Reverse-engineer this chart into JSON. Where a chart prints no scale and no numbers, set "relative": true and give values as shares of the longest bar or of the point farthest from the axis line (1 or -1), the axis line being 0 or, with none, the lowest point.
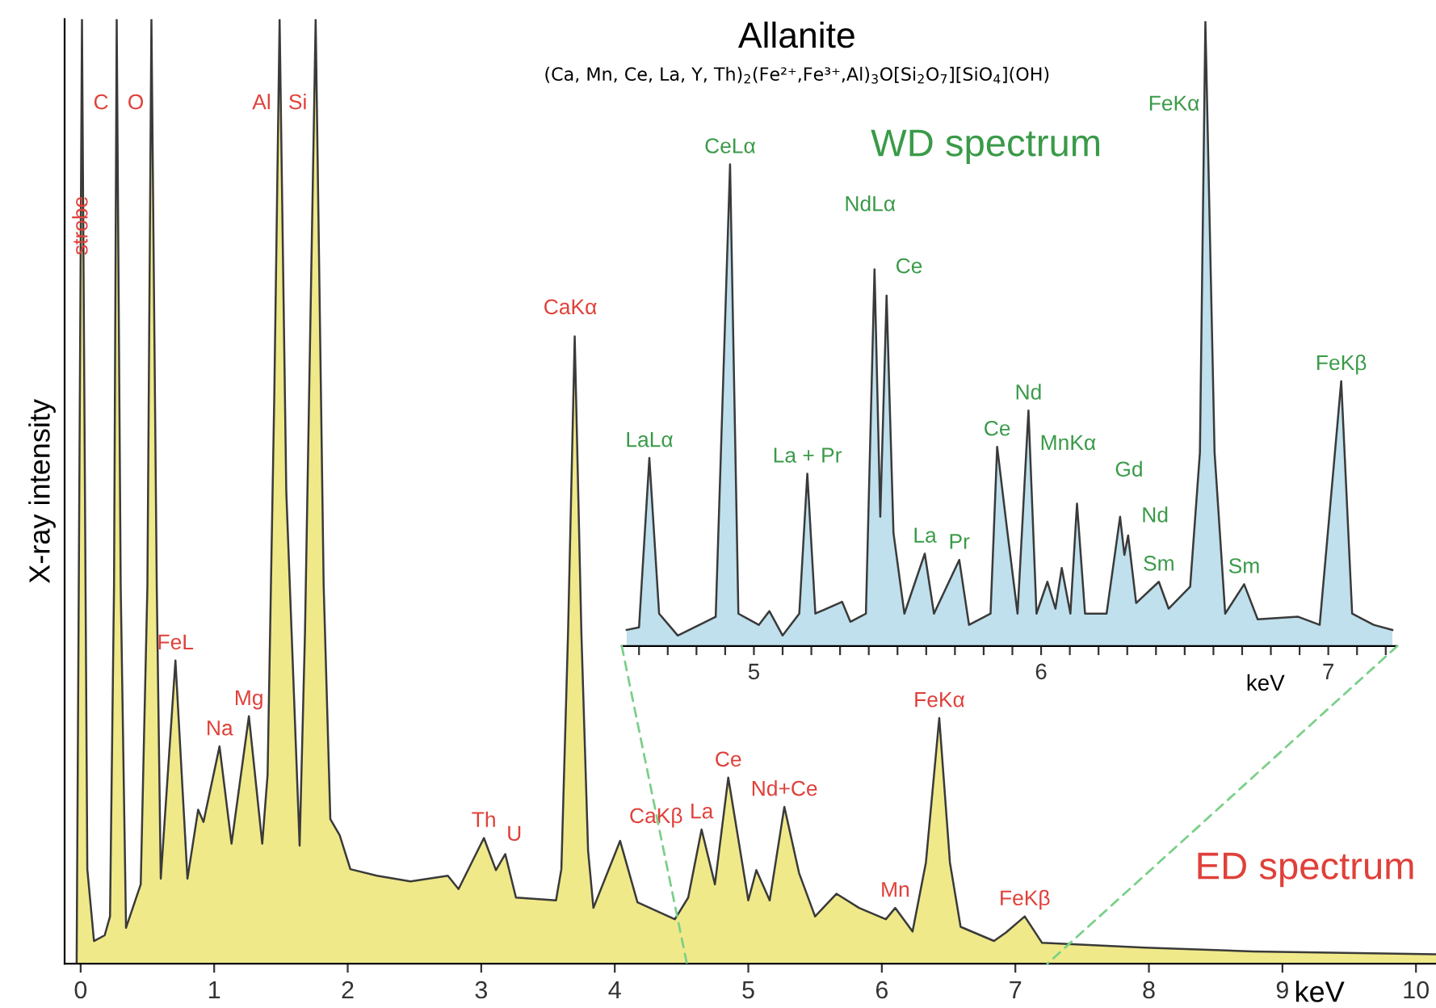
{
  "chart_data": [
    {
      "type": "area",
      "title": "Allanite",
      "subtitle": "(Ca, Mn, Ce, La, Y, Th)$_{2}$(Fe²⁺,Fe³⁺,Al)$_{3}$O[Si$_{2}$O$_{7}$][SiO$_{4}$](OH)",
      "xlabel": "keV",
      "ylabel": "X-ray intensity",
      "relative": true,
      "tick_labels": "x",
      "xlim": [
        -0.12,
        10.15
      ],
      "xticks": [
        0,
        1,
        2,
        3,
        4,
        5,
        6,
        7,
        8,
        9,
        10
      ],
      "series": [
        {
          "color": "#f0e98a",
          "x": [
            -0.03,
            0.01,
            0.05,
            0.1,
            0.18,
            0.22,
            0.25,
            0.27,
            0.3,
            0.34,
            0.45,
            0.5,
            0.53,
            0.57,
            0.6,
            0.71,
            0.8,
            0.88,
            0.92,
            1.04,
            1.13,
            1.26,
            1.36,
            1.4,
            1.45,
            1.49,
            1.54,
            1.64,
            1.68,
            1.76,
            1.82,
            1.87,
            1.94,
            2.02,
            2.22,
            2.47,
            2.75,
            2.83,
            3.02,
            3.11,
            3.18,
            3.26,
            3.56,
            3.6,
            3.65,
            3.7,
            3.75,
            3.8,
            3.84,
            4.04,
            4.17,
            4.45,
            4.55,
            4.65,
            4.75,
            4.85,
            5.0,
            5.06,
            5.16,
            5.27,
            5.38,
            5.5,
            5.66,
            5.83,
            6.03,
            6.1,
            6.23,
            6.33,
            6.43,
            6.51,
            6.59,
            6.84,
            6.93,
            7.07,
            7.2,
            7.97,
            8.78,
            10.15
          ],
          "values": [
            0.0,
            1,
            0.1,
            0.024,
            0.03,
            0.05,
            0.4,
            1,
            0.4,
            0.038,
            0.084,
            0.4,
            1,
            0.4,
            0.09,
            0.321,
            0.09,
            0.163,
            0.15,
            0.23,
            0.127,
            0.262,
            0.127,
            0.2,
            0.6,
            1,
            0.5,
            0.125,
            0.35,
            1,
            0.4,
            0.153,
            0.136,
            0.1,
            0.093,
            0.087,
            0.093,
            0.079,
            0.133,
            0.099,
            0.116,
            0.07,
            0.067,
            0.1,
            0.35,
            0.664,
            0.35,
            0.12,
            0.059,
            0.13,
            0.065,
            0.047,
            0.07,
            0.142,
            0.084,
            0.197,
            0.067,
            0.099,
            0.067,
            0.166,
            0.096,
            0.05,
            0.074,
            0.059,
            0.047,
            0.059,
            0.034,
            0.107,
            0.26,
            0.107,
            0.039,
            0.024,
            0.033,
            0.05,
            0.022,
            0.017,
            0.013,
            0.01
          ]
        }
      ],
      "annotations": [
        {
          "text": "strobe",
          "x": 0.01,
          "y": 0.75
        },
        {
          "text": "C",
          "x": 0.27,
          "y": 0.9
        },
        {
          "text": "O",
          "x": 0.53,
          "y": 0.9
        },
        {
          "text": "Al",
          "x": 1.49,
          "y": 0.9
        },
        {
          "text": "Si",
          "x": 1.76,
          "y": 0.9
        },
        {
          "text": "FeL",
          "x": 0.71,
          "y": 0.321
        },
        {
          "text": "Na",
          "x": 1.04,
          "y": 0.23
        },
        {
          "text": "Mg",
          "x": 1.26,
          "y": 0.262
        },
        {
          "text": "CaKα",
          "x": 3.7,
          "y": 0.664
        },
        {
          "text": "Th",
          "x": 3.02,
          "y": 0.133
        },
        {
          "text": "U",
          "x": 3.18,
          "y": 0.116
        },
        {
          "text": "CaKβ",
          "x": 4.04,
          "y": 0.13
        },
        {
          "text": "La",
          "x": 4.65,
          "y": 0.142
        },
        {
          "text": "Ce",
          "x": 4.85,
          "y": 0.197
        },
        {
          "text": "Nd+Ce",
          "x": 5.27,
          "y": 0.166
        },
        {
          "text": "Mn",
          "x": 6.1,
          "y": 0.059
        },
        {
          "text": "FeKα",
          "x": 6.43,
          "y": 0.26
        },
        {
          "text": "FeKβ",
          "x": 7.07,
          "y": 0.05
        },
        "ED spectrum"
      ]
    },
    {
      "type": "area",
      "xlabel": "keV",
      "relative": true,
      "tick_labels": "x",
      "xlim": [
        4.54,
        7.24
      ],
      "xticks": [
        {
          "value": 4.6,
          "label": null
        },
        {
          "value": 4.7,
          "label": null
        },
        {
          "value": 4.8,
          "label": null
        },
        {
          "value": 4.9,
          "label": null
        },
        5,
        {
          "value": 5.1,
          "label": null
        },
        {
          "value": 5.2,
          "label": null
        },
        {
          "value": 5.3,
          "label": null
        },
        {
          "value": 5.4,
          "label": null
        },
        {
          "value": 5.5,
          "label": null
        },
        {
          "value": 5.6,
          "label": null
        },
        {
          "value": 5.7,
          "label": null
        },
        {
          "value": 5.8,
          "label": null
        },
        {
          "value": 5.9,
          "label": null
        },
        6,
        {
          "value": 6.1,
          "label": null
        },
        {
          "value": 6.2,
          "label": null
        },
        {
          "value": 6.3,
          "label": null
        },
        {
          "value": 6.4,
          "label": null
        },
        {
          "value": 6.5,
          "label": null
        },
        {
          "value": 6.6,
          "label": null
        },
        {
          "value": 6.7,
          "label": null
        },
        {
          "value": 6.8,
          "label": null
        },
        {
          "value": 6.9,
          "label": null
        },
        7,
        {
          "value": 7.1,
          "label": null
        },
        {
          "value": 7.2,
          "label": null
        }
      ],
      "series": [
        {
          "color": "#bfe0ec",
          "x": [
            4.557,
            4.6,
            4.636,
            4.67,
            4.735,
            4.867,
            4.917,
            4.946,
            5.017,
            5.054,
            5.1,
            5.158,
            5.186,
            5.214,
            5.307,
            5.336,
            5.39,
            5.42,
            5.44,
            5.462,
            5.486,
            5.524,
            5.595,
            5.627,
            5.715,
            5.749,
            5.824,
            5.847,
            5.881,
            5.918,
            5.956,
            5.984,
            6.022,
            6.05,
            6.072,
            6.102,
            6.125,
            6.153,
            6.228,
            6.275,
            6.29,
            6.303,
            6.331,
            6.41,
            6.444,
            6.519,
            6.553,
            6.572,
            6.604,
            6.641,
            6.707,
            6.754,
            6.895,
            6.97,
            7.045,
            7.083,
            7.158,
            7.223
          ],
          "values": [
            0.026,
            0.03,
            0.301,
            0.052,
            0.017,
            0.047,
            0.771,
            0.052,
            0.034,
            0.056,
            0.017,
            0.052,
            0.276,
            0.052,
            0.071,
            0.039,
            0.052,
            0.603,
            0.207,
            0.561,
            0.181,
            0.052,
            0.148,
            0.052,
            0.138,
            0.034,
            0.052,
            0.319,
            0.189,
            0.052,
            0.377,
            0.052,
            0.103,
            0.06,
            0.125,
            0.052,
            0.228,
            0.052,
            0.052,
            0.207,
            0.146,
            0.177,
            0.069,
            0.103,
            0.06,
            0.095,
            0.31,
            1,
            0.31,
            0.052,
            0.099,
            0.043,
            0.047,
            0.034,
            0.424,
            0.052,
            0.034,
            0.026
          ]
        }
      ],
      "annotations": [
        {
          "text": "LaLα",
          "x": 4.636,
          "y": 0.301
        },
        {
          "text": "CeLα",
          "x": 4.917,
          "y": 0.771
        },
        {
          "text": "La + Pr",
          "x": 5.186,
          "y": 0.276
        },
        {
          "text": "NdLα",
          "x": 5.42,
          "y": 0.603
        },
        {
          "text": "Ce",
          "x": 5.462,
          "y": 0.561
        },
        {
          "text": "La",
          "x": 5.595,
          "y": 0.148
        },
        {
          "text": "Pr",
          "x": 5.715,
          "y": 0.138
        },
        {
          "text": "Ce",
          "x": 5.847,
          "y": 0.319
        },
        {
          "text": "Nd",
          "x": 5.956,
          "y": 0.377
        },
        {
          "text": "MnKα",
          "x": 6.125,
          "y": 0.228
        },
        {
          "text": "Gd",
          "x": 6.275,
          "y": 0.207
        },
        {
          "text": "Nd",
          "x": 6.303,
          "y": 0.177
        },
        {
          "text": "Sm",
          "x": 6.41,
          "y": 0.103
        },
        {
          "text": "FeKα",
          "x": 6.572,
          "y": 0.85
        },
        {
          "text": "Sm",
          "x": 6.707,
          "y": 0.099
        },
        {
          "text": "FeKβ",
          "x": 7.045,
          "y": 0.424
        },
        "WD spectrum"
      ]
    }
  ]
}
